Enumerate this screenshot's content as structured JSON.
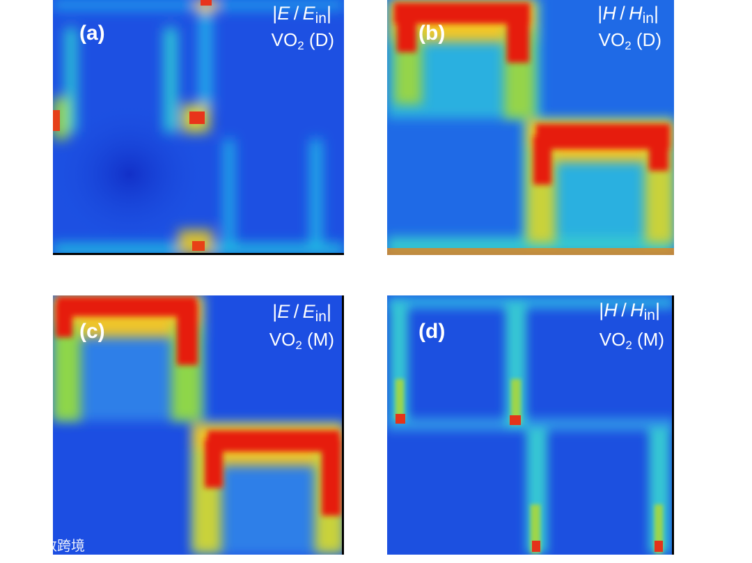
{
  "colormap": {
    "low": "#1432d8",
    "mid": "#22c9e8",
    "high": "#e81a08"
  },
  "panels": [
    {
      "id": "a",
      "label": "(a)",
      "quantity": {
        "symbol": "E",
        "ref": "E",
        "sub": "in"
      },
      "state": "VO",
      "state_sub": "2",
      "phase": "(D)"
    },
    {
      "id": "b",
      "label": "(b)",
      "quantity": {
        "symbol": "H",
        "ref": "H",
        "sub": "in"
      },
      "state": "VO",
      "state_sub": "2",
      "phase": "(D)"
    },
    {
      "id": "c",
      "label": "(c)",
      "quantity": {
        "symbol": "E",
        "ref": "E",
        "sub": "in"
      },
      "state": "VO",
      "state_sub": "2",
      "phase": "(M)"
    },
    {
      "id": "d",
      "label": "(d)",
      "quantity": {
        "symbol": "H",
        "ref": "H",
        "sub": "in"
      },
      "state": "VO",
      "state_sub": "2",
      "phase": "(M)"
    }
  ],
  "watermark": {
    "text": "大数跨境"
  }
}
